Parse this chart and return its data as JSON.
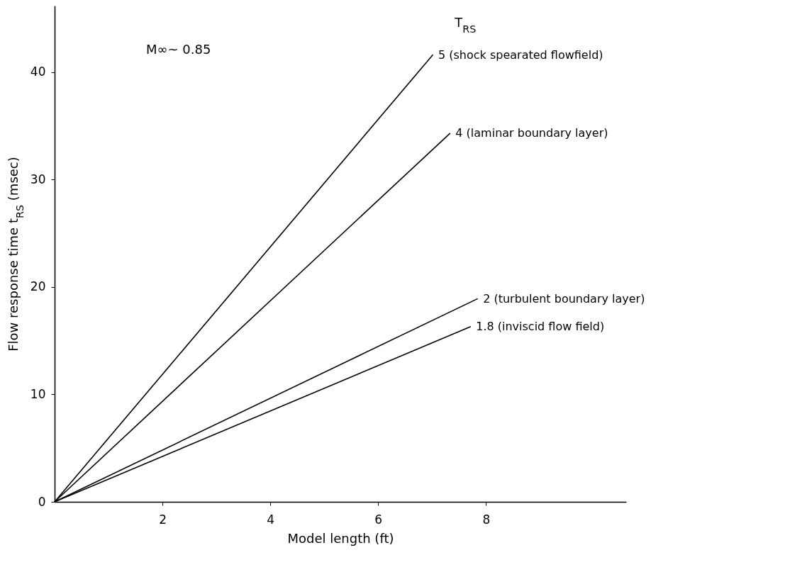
{
  "chart_data": {
    "type": "line",
    "xlabel": "Model length (ft)",
    "ylabel": "Flow response time t$_{RS}$ (msec)",
    "xlim": [
      0,
      10.6
    ],
    "ylim": [
      0,
      46.2
    ],
    "xticks": [
      2,
      4,
      6,
      8
    ],
    "yticks": [
      0,
      10,
      20,
      30,
      40
    ],
    "grid": false,
    "legend": false,
    "marker": "none",
    "line_style": "solid",
    "annotations": [
      "M∞~ 0.85",
      "T$_{RS}$"
    ],
    "series": [
      {
        "name": "5 (shock spearated flowfield)",
        "color": "#000000",
        "x": [
          0,
          7.01
        ],
        "values": [
          0,
          41.6
        ]
      },
      {
        "name": "4 (laminar boundary layer)",
        "color": "#000000",
        "x": [
          0,
          7.33
        ],
        "values": [
          0,
          34.3
        ]
      },
      {
        "name": "2 (turbulent boundary layer)",
        "color": "#000000",
        "x": [
          0,
          7.84
        ],
        "values": [
          0,
          18.9
        ]
      },
      {
        "name": "1.8 (inviscid flow field)",
        "color": "#000000",
        "x": [
          0,
          7.71
        ],
        "values": [
          0,
          16.3
        ]
      }
    ]
  }
}
